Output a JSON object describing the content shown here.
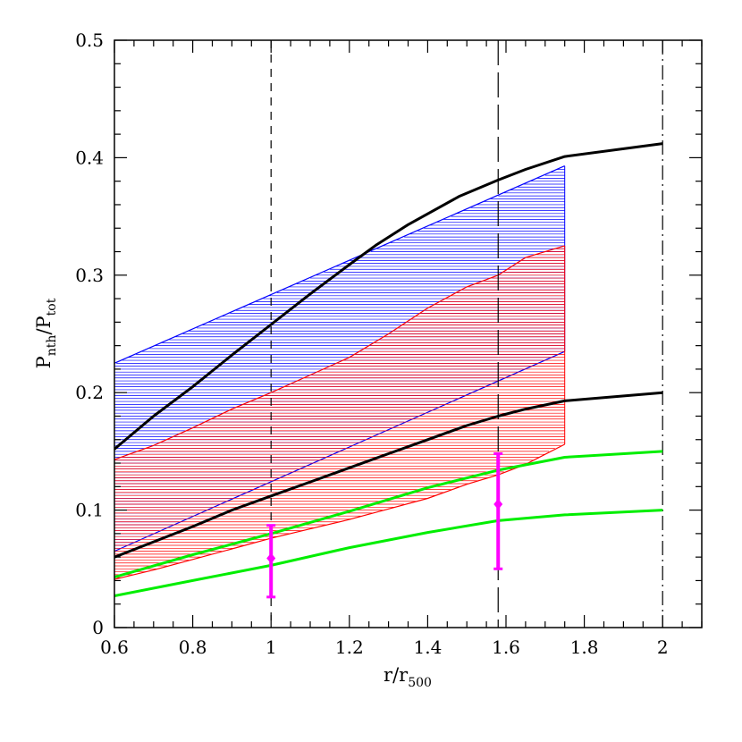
{
  "chart_data": {
    "type": "line",
    "xlabel": {
      "main": "r/r",
      "sub": "500"
    },
    "ylabel": {
      "main": "P",
      "sub1": "nth",
      "slash": "/P",
      "sub2": "tot"
    },
    "xlim": [
      0.6,
      2.1
    ],
    "ylim": [
      0,
      0.5
    ],
    "x_ticks": [
      0.6,
      0.8,
      1,
      1.2,
      1.4,
      1.6,
      1.8,
      2
    ],
    "x_tick_labels": [
      "0.6",
      "0.8",
      "1",
      "1.2",
      "1.4",
      "1.6",
      "1.8",
      "2"
    ],
    "y_ticks": [
      0,
      0.1,
      0.2,
      0.3,
      0.4,
      0.5
    ],
    "y_tick_labels": [
      "0",
      "0.1",
      "0.2",
      "0.3",
      "0.4",
      "0.5"
    ],
    "x_minor_step": 0.05,
    "y_minor_step": 0.02,
    "vertical_lines": [
      {
        "x": 1.0,
        "style": "dashed"
      },
      {
        "x": 1.58,
        "style": "long-dashed"
      },
      {
        "x": 2.0,
        "style": "dash-dot"
      }
    ],
    "bands": [
      {
        "color": "#0000ff",
        "upper": {
          "x": [
            0.6,
            1.75
          ],
          "y": [
            0.225,
            0.393
          ]
        },
        "lower": {
          "x": [
            0.6,
            1.75
          ],
          "y": [
            0.065,
            0.235
          ]
        }
      },
      {
        "color": "#ff0000",
        "upper": {
          "x": [
            0.6,
            0.7,
            0.8,
            0.9,
            1.0,
            1.1,
            1.2,
            1.3,
            1.4,
            1.5,
            1.58,
            1.65,
            1.75
          ],
          "y": [
            0.143,
            0.155,
            0.17,
            0.186,
            0.2,
            0.215,
            0.23,
            0.25,
            0.272,
            0.29,
            0.3,
            0.315,
            0.325
          ]
        },
        "lower": {
          "x": [
            0.6,
            0.7,
            0.8,
            0.9,
            1.0,
            1.1,
            1.2,
            1.3,
            1.4,
            1.5,
            1.58,
            1.65,
            1.75
          ],
          "y": [
            0.041,
            0.049,
            0.058,
            0.067,
            0.076,
            0.084,
            0.092,
            0.101,
            0.11,
            0.122,
            0.13,
            0.139,
            0.156
          ]
        }
      }
    ],
    "series": [
      {
        "color": "#000000",
        "width": 3,
        "x": [
          0.6,
          0.7,
          0.8,
          0.9,
          1.0,
          1.1,
          1.2,
          1.27,
          1.35,
          1.48,
          1.58,
          1.65,
          1.75,
          2.0
        ],
        "y": [
          0.152,
          0.18,
          0.205,
          0.232,
          0.258,
          0.284,
          0.309,
          0.326,
          0.343,
          0.367,
          0.381,
          0.39,
          0.401,
          0.412
        ]
      },
      {
        "color": "#000000",
        "width": 3,
        "x": [
          0.6,
          0.7,
          0.8,
          0.9,
          1.0,
          1.1,
          1.2,
          1.3,
          1.4,
          1.5,
          1.58,
          1.65,
          1.75,
          2.0
        ],
        "y": [
          0.06,
          0.073,
          0.086,
          0.1,
          0.112,
          0.124,
          0.136,
          0.148,
          0.16,
          0.172,
          0.18,
          0.186,
          0.193,
          0.2
        ]
      },
      {
        "color": "#00ee00",
        "width": 3,
        "x": [
          0.6,
          0.8,
          1.0,
          1.2,
          1.4,
          1.58,
          1.75,
          2.0
        ],
        "y": [
          0.043,
          0.062,
          0.08,
          0.099,
          0.119,
          0.134,
          0.145,
          0.15
        ]
      },
      {
        "color": "#00ee00",
        "width": 3,
        "x": [
          0.6,
          0.8,
          1.0,
          1.2,
          1.4,
          1.58,
          1.75,
          2.0
        ],
        "y": [
          0.027,
          0.04,
          0.053,
          0.068,
          0.081,
          0.091,
          0.096,
          0.1
        ]
      }
    ],
    "error_points": [
      {
        "x": 1.0,
        "y": 0.059,
        "ylow": 0.026,
        "yhigh": 0.087,
        "color": "#ff00ff"
      },
      {
        "x": 1.58,
        "y": 0.105,
        "ylow": 0.05,
        "yhigh": 0.148,
        "color": "#ff00ff"
      }
    ]
  }
}
